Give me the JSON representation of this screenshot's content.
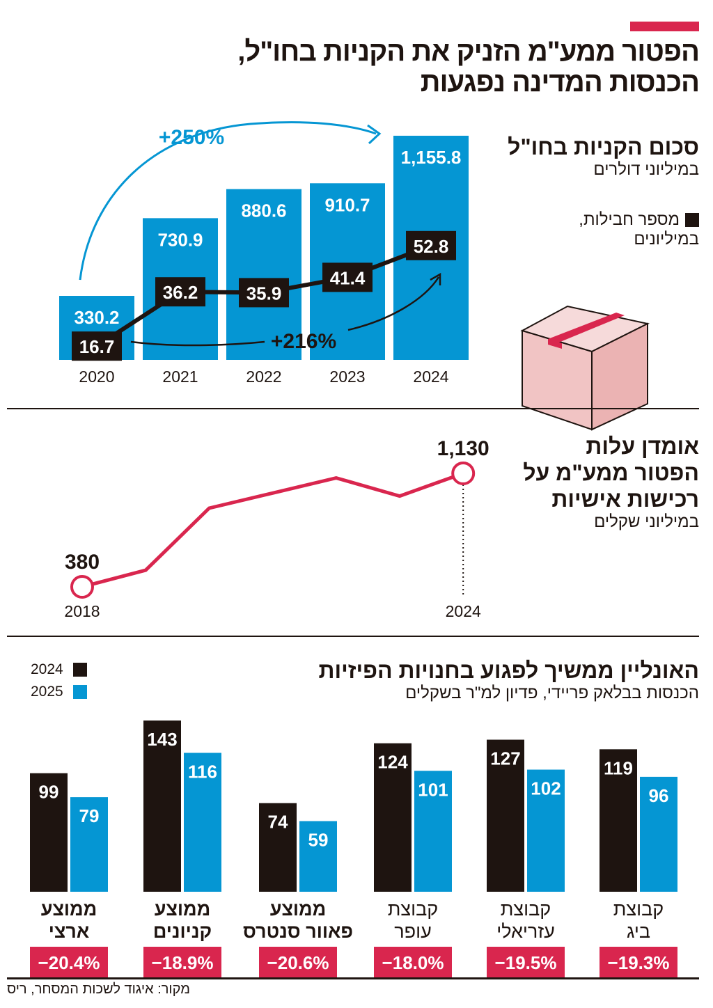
{
  "title": "הפטור ממע\"מ הזניק את הקניות בחו\"ל, הכנסות המדינה נפגעות",
  "colors": {
    "accent": "#d9264e",
    "blue": "#0596d3",
    "black": "#1e1410",
    "pink": "#f1c4c4"
  },
  "chart_data": [
    {
      "type": "bar",
      "title": "סכום הקניות בחו\"ל",
      "subtitle": "במיליוני דולרים",
      "categories": [
        "2020",
        "2021",
        "2022",
        "2023",
        "2024"
      ],
      "series": [
        {
          "name": "סכום הקניות בחו\"ל",
          "values": [
            330.2,
            730.9,
            880.6,
            910.7,
            1155.8
          ],
          "labels": [
            "330.2",
            "730.9",
            "880.6",
            "910.7",
            "1,155.8"
          ],
          "type": "bar"
        },
        {
          "name": "מספר חבילות, במיליונים",
          "values": [
            16.7,
            36.2,
            35.9,
            41.4,
            52.8
          ],
          "labels": [
            "16.7",
            "36.2",
            "35.9",
            "41.4",
            "52.8"
          ],
          "type": "line"
        }
      ],
      "legend_label": "מספר חבילות, במיליונים",
      "annotations": [
        "+250%",
        "+216%"
      ]
    },
    {
      "type": "line",
      "title": "אומדן עלות הפטור ממע\"מ על רכישות אישיות",
      "subtitle": "במיליוני שקלים",
      "x": [
        2018,
        2019,
        2020,
        2021,
        2022,
        2023,
        2024
      ],
      "values": [
        380,
        490,
        900,
        1000,
        1100,
        980,
        1130
      ],
      "labels": {
        "first": "380",
        "last": "1,130"
      },
      "xtick_labels": [
        "2018",
        "2024"
      ]
    },
    {
      "type": "bar",
      "title": "האונליין ממשיך לפגוע בחנויות הפיזיות",
      "subtitle": "הכנסות בבלאק פריידי, פדיון למ\"ר בשקלים",
      "categories": [
        "ממוצע ארצי",
        "ממוצע קניונים",
        "ממוצע פאוור סנטרס",
        "קבוצת עופר",
        "קבוצת עזריאלי",
        "קבוצת ביג"
      ],
      "category_lines": [
        [
          "ממוצע",
          "ארצי"
        ],
        [
          "ממוצע",
          "קניונים"
        ],
        [
          "ממוצע",
          "פאוור סנטרס"
        ],
        [
          "קבוצת",
          "עופר"
        ],
        [
          "קבוצת",
          "עזריאלי"
        ],
        [
          "קבוצת",
          "ביג"
        ]
      ],
      "bold_categories": [
        true,
        true,
        true,
        false,
        false,
        false
      ],
      "series": [
        {
          "name": "2024",
          "values": [
            99,
            143,
            74,
            124,
            127,
            119
          ]
        },
        {
          "name": "2025",
          "values": [
            79,
            116,
            59,
            101,
            102,
            96
          ]
        }
      ],
      "changes": [
        "−20.4%",
        "−18.9%",
        "−20.6%",
        "−18.0%",
        "−19.5%",
        "−19.3%"
      ],
      "legend_placement": "top-left"
    }
  ],
  "source": "מקור: איגוד לשכות המסחר, ריס"
}
